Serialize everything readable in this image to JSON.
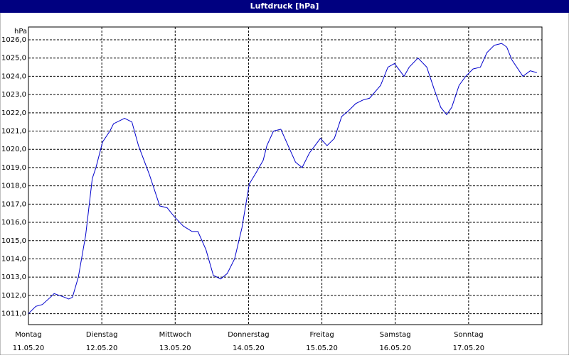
{
  "chart_data": {
    "type": "line",
    "title": "Luftdruck [hPa]",
    "y_label": "hPa",
    "xlim": [
      0,
      7
    ],
    "xticks": [
      {
        "value": 0,
        "label": "Montag"
      },
      {
        "value": 1,
        "label": "Dienstag"
      },
      {
        "value": 2,
        "label": "Mittwoch"
      },
      {
        "value": 3,
        "label": "Donnerstag"
      },
      {
        "value": 4,
        "label": "Freitag"
      },
      {
        "value": 5,
        "label": "Samstag"
      },
      {
        "value": 6,
        "label": "Sonntag"
      }
    ],
    "xtick_dates": [
      "11.05.20",
      "12.05.20",
      "13.05.20",
      "14.05.20",
      "15.05.20",
      "16.05.20",
      "17.05.20"
    ],
    "ylim": [
      1010.4,
      1026.7
    ],
    "yticks": [
      {
        "value": 1011,
        "label": "1011,0"
      },
      {
        "value": 1012,
        "label": "1012,0"
      },
      {
        "value": 1013,
        "label": "1013,0"
      },
      {
        "value": 1014,
        "label": "1014,0"
      },
      {
        "value": 1015,
        "label": "1015,0"
      },
      {
        "value": 1016,
        "label": "1016,0"
      },
      {
        "value": 1017,
        "label": "1017,0"
      },
      {
        "value": 1018,
        "label": "1018,0"
      },
      {
        "value": 1019,
        "label": "1019,0"
      },
      {
        "value": 1020,
        "label": "1020,0"
      },
      {
        "value": 1021,
        "label": "1021,0"
      },
      {
        "value": 1022,
        "label": "1022,0"
      },
      {
        "value": 1023,
        "label": "1023,0"
      },
      {
        "value": 1024,
        "label": "1024,0"
      },
      {
        "value": 1025,
        "label": "1025,0"
      },
      {
        "value": 1026,
        "label": "1026,0"
      }
    ],
    "grid": true,
    "series": [
      {
        "name": "Luftdruck",
        "color": "#0000cc",
        "x": [
          0,
          0.1,
          0.19,
          0.3,
          0.35,
          0.49,
          0.55,
          0.6,
          0.68,
          0.78,
          0.87,
          0.92,
          1.01,
          1.11,
          1.16,
          1.31,
          1.41,
          1.5,
          1.65,
          1.79,
          1.89,
          1.99,
          2.11,
          2.23,
          2.31,
          2.42,
          2.52,
          2.62,
          2.71,
          2.81,
          2.91,
          3.01,
          3.1,
          3.2,
          3.25,
          3.34,
          3.44,
          3.54,
          3.64,
          3.73,
          3.83,
          3.98,
          4.07,
          4.17,
          4.27,
          4.36,
          4.46,
          4.56,
          4.65,
          4.8,
          4.9,
          4.99,
          5.12,
          5.19,
          5.31,
          5.43,
          5.53,
          5.62,
          5.7,
          5.77,
          5.87,
          5.96,
          6.06,
          6.16,
          6.25,
          6.35,
          6.45,
          6.52,
          6.59,
          6.74,
          6.84,
          6.93
        ],
        "values": [
          1011.0,
          1011.4,
          1011.5,
          1011.9,
          1012.1,
          1011.9,
          1011.8,
          1011.9,
          1013.0,
          1015.3,
          1018.4,
          1019.0,
          1020.4,
          1021.0,
          1021.4,
          1021.7,
          1021.5,
          1020.2,
          1018.6,
          1016.9,
          1016.8,
          1016.3,
          1015.8,
          1015.5,
          1015.5,
          1014.5,
          1013.1,
          1012.9,
          1013.2,
          1014.0,
          1015.7,
          1018.1,
          1018.7,
          1019.4,
          1020.2,
          1021.0,
          1021.1,
          1020.2,
          1019.3,
          1019.0,
          1019.8,
          1020.6,
          1020.2,
          1020.6,
          1021.8,
          1022.1,
          1022.5,
          1022.7,
          1022.8,
          1023.5,
          1024.5,
          1024.7,
          1024.0,
          1024.5,
          1025.0,
          1024.5,
          1023.3,
          1022.3,
          1021.9,
          1022.3,
          1023.5,
          1024.0,
          1024.4,
          1024.5,
          1025.3,
          1025.7,
          1025.8,
          1025.6,
          1024.9,
          1024.0,
          1024.3,
          1024.2
        ]
      }
    ]
  }
}
